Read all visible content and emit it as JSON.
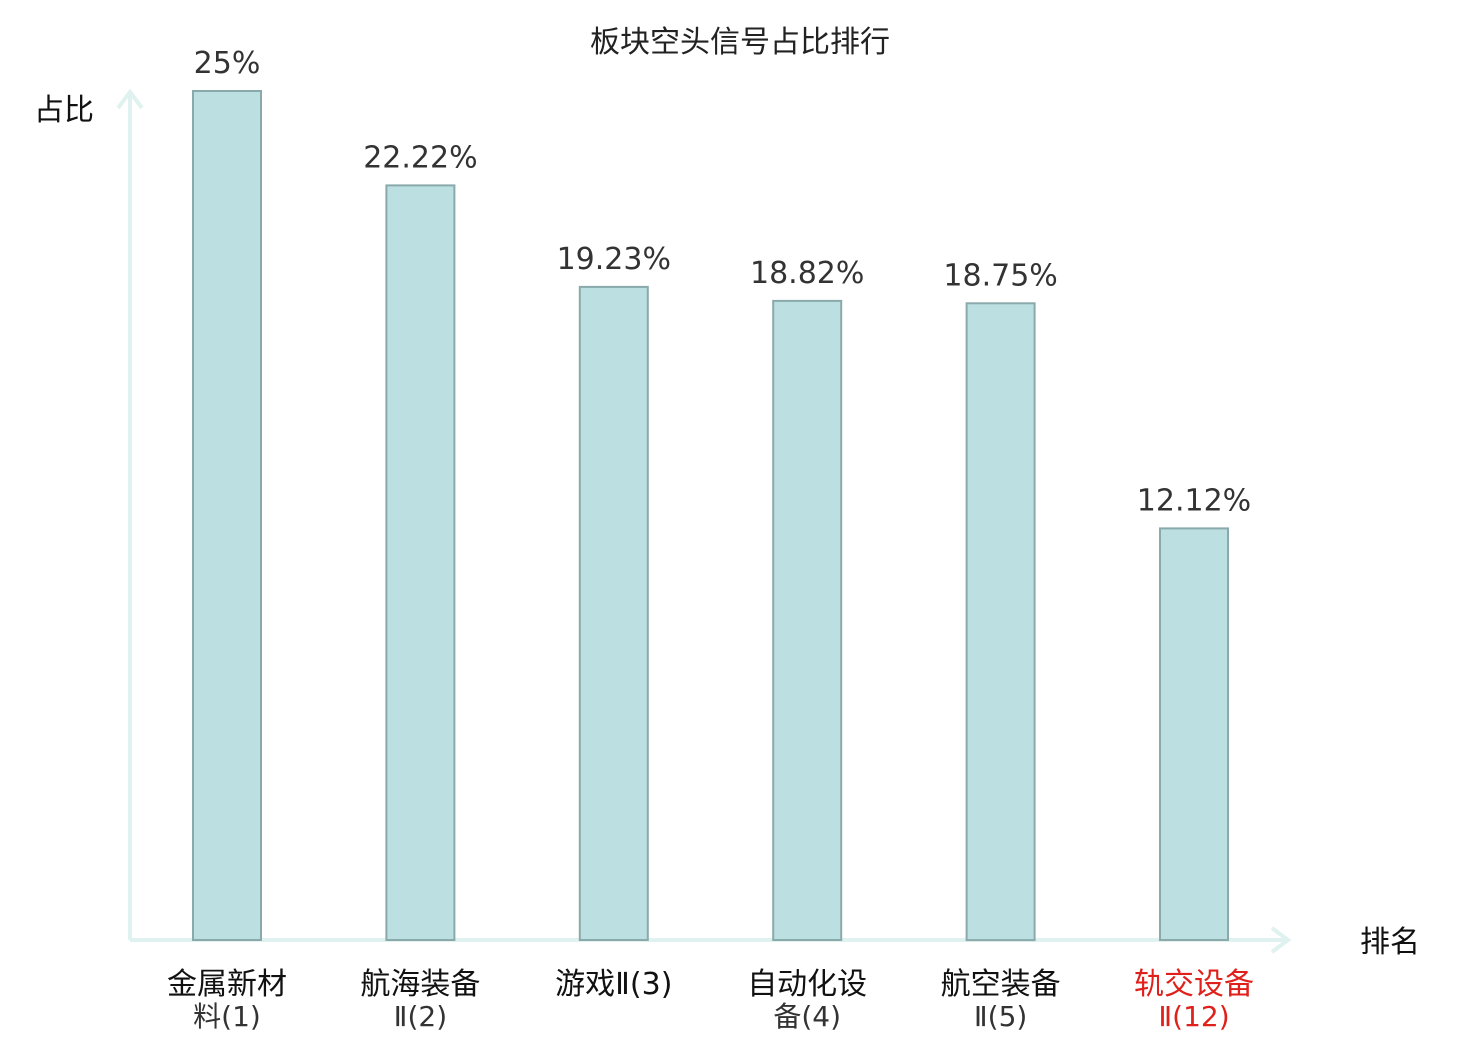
{
  "chart_data": {
    "type": "bar",
    "title": "板块空头信号占比排行",
    "xlabel": "排名",
    "ylabel": "占比",
    "ylim": [
      0,
      25
    ],
    "grid": false,
    "legend": "none",
    "categories": [
      {
        "line1": "金属新材",
        "line2": "料(1)",
        "highlight": false
      },
      {
        "line1": "航海装备",
        "line2": "Ⅱ(2)",
        "highlight": false
      },
      {
        "line1": "游戏Ⅱ(3)",
        "line2": "",
        "highlight": false
      },
      {
        "line1": "自动化设",
        "line2": "备(4)",
        "highlight": false
      },
      {
        "line1": "航空装备",
        "line2": "Ⅱ(5)",
        "highlight": false
      },
      {
        "line1": "轨交设备",
        "line2": "Ⅱ(12)",
        "highlight": true
      }
    ],
    "values": [
      25,
      22.22,
      19.23,
      18.82,
      18.75,
      12.12
    ],
    "value_labels": [
      "25%",
      "22.22%",
      "19.23%",
      "18.82%",
      "18.75%",
      "12.12%"
    ]
  },
  "colors": {
    "bar_fill": "#bce0e2",
    "bar_stroke": "#8aa9ab",
    "axis": "#e0f2ef",
    "label_normal": "#333333",
    "label_highlight": "#e0201a"
  }
}
